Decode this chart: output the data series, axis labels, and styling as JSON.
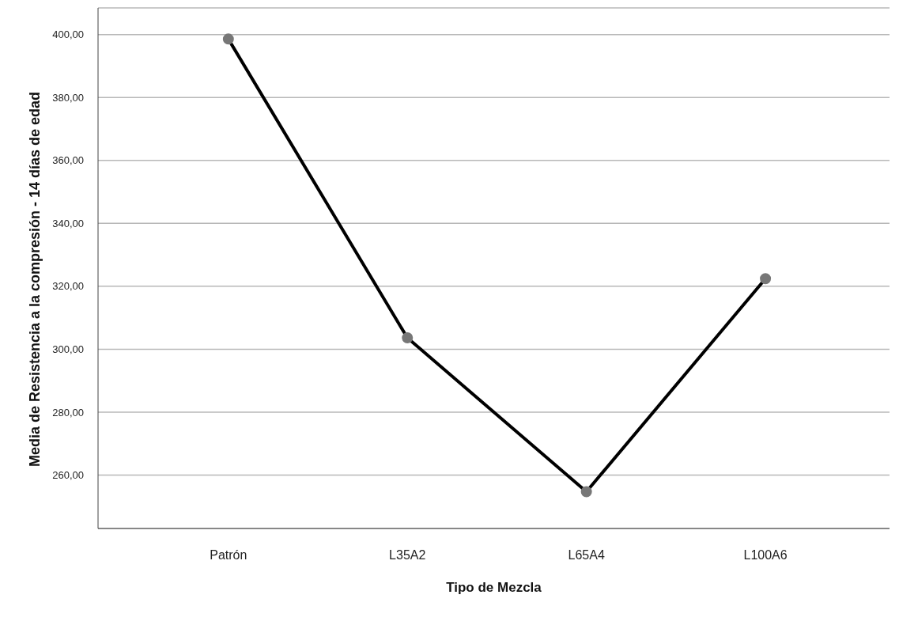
{
  "chart_data": {
    "type": "line",
    "xlabel": "Tipo de Mezcla",
    "ylabel": "Media de Resistencia a la compresión - 14 días de edad",
    "categories": [
      "Patrón",
      "L35A2",
      "L65A4",
      "L100A6"
    ],
    "series": [
      {
        "color": "#000000",
        "values": [
          398.6,
          303.6,
          254.7,
          322.4
        ]
      }
    ],
    "ylim": [
      243,
      408.5
    ],
    "yticks": [
      {
        "value": 260,
        "label": "260,00"
      },
      {
        "value": 280,
        "label": "280,00"
      },
      {
        "value": 300,
        "label": "300,00"
      },
      {
        "value": 320,
        "label": "320,00"
      },
      {
        "value": 340,
        "label": "340,00"
      },
      {
        "value": 360,
        "label": "360,00"
      },
      {
        "value": 380,
        "label": "380,00"
      },
      {
        "value": 400,
        "label": "400,00"
      }
    ],
    "grid": "y",
    "marker": "circle",
    "line_style": "solid",
    "legend": false
  }
}
